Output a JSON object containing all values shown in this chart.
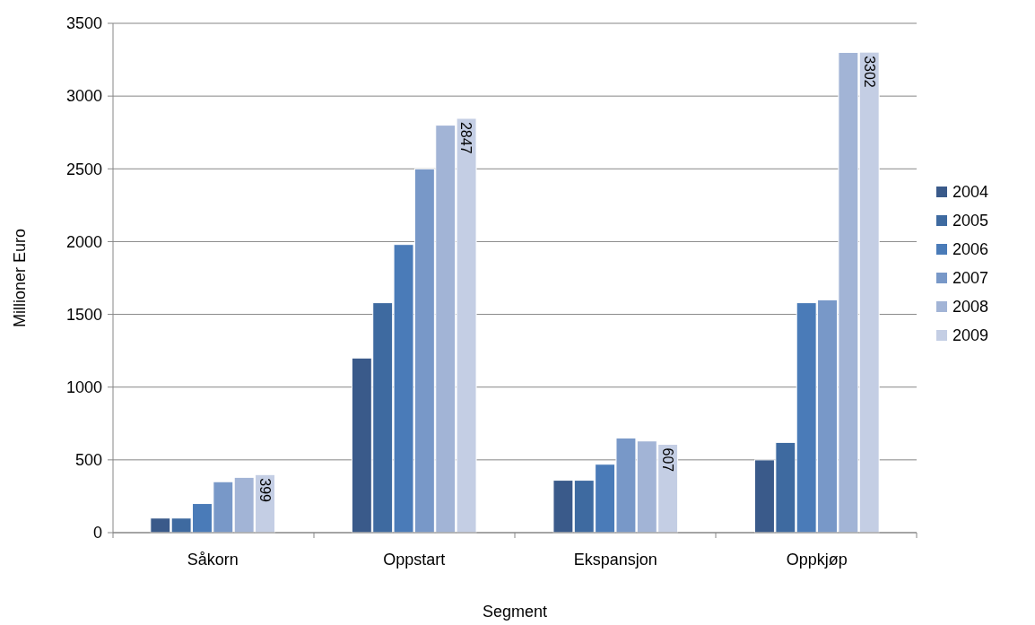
{
  "chart_data": {
    "type": "bar",
    "xlabel": "Segment",
    "ylabel": "Millioner Euro",
    "categories": [
      "Såkorn",
      "Oppstart",
      "Ekspansjon",
      "Oppkjøp"
    ],
    "series": [
      {
        "name": "2004",
        "color": "#3a5a8a",
        "values": [
          100,
          1200,
          360,
          500
        ]
      },
      {
        "name": "2005",
        "color": "#3e6aa0",
        "values": [
          100,
          1580,
          360,
          620
        ]
      },
      {
        "name": "2006",
        "color": "#4a7bb8",
        "values": [
          200,
          1980,
          470,
          1580
        ]
      },
      {
        "name": "2007",
        "color": "#7898c8",
        "values": [
          350,
          2500,
          650,
          1600
        ]
      },
      {
        "name": "2008",
        "color": "#a2b4d6",
        "values": [
          380,
          2800,
          630,
          3300
        ]
      },
      {
        "name": "2009",
        "color": "#c4cee4",
        "values": [
          399,
          2847,
          607,
          3302
        ],
        "value_labels": [
          "399",
          "2847",
          "607",
          "3302"
        ]
      }
    ],
    "ylim": [
      0,
      3500
    ],
    "yticks": [
      0,
      500,
      1000,
      1500,
      2000,
      2500,
      3000,
      3500
    ],
    "grid": "y",
    "legend": "right"
  }
}
